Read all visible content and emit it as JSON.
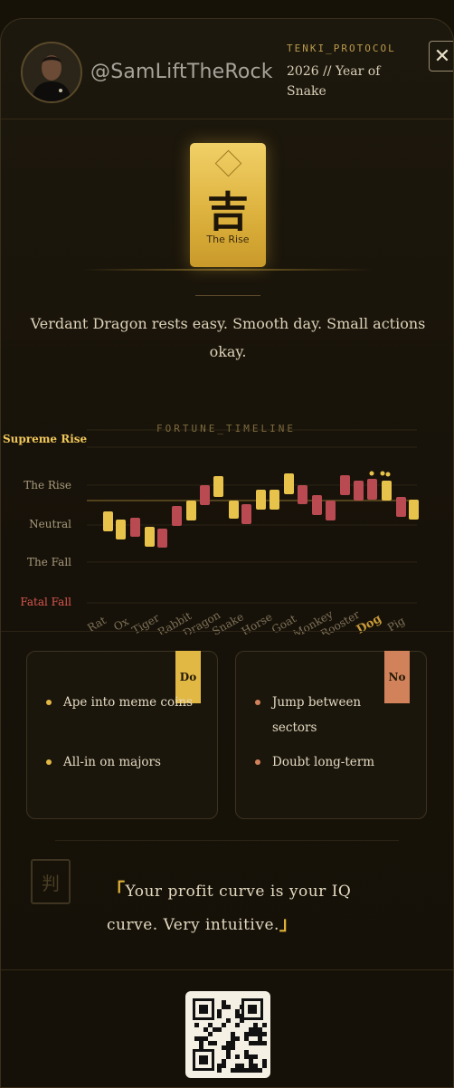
{
  "header": {
    "handle": "@SamLiftTheRock",
    "protocol": "TENKI_PROTOCOL",
    "year": "2026 // Year of Snake",
    "close_icon": "close-icon"
  },
  "fortune_card": {
    "kanji": "吉",
    "label": "The Rise",
    "color": "#e2b845"
  },
  "verdict": "Verdant Dragon rests easy. Smooth day. Small actions okay.",
  "timeline": {
    "title": "FORTUNE_TIMELINE",
    "levels": [
      "Supreme Rise",
      "The Rise",
      "Neutral",
      "The Fall",
      "Fatal Fall"
    ],
    "level_colors": {
      "Supreme Rise": "#f0c75a",
      "Fatal Fall": "#d9574f"
    },
    "highlighted_sign": "Dog",
    "signs": [
      "Rat",
      "Ox",
      "Tiger",
      "Rabbit",
      "Dragon",
      "Snake",
      "Horse",
      "Goat",
      "Monkey",
      "Rooster",
      "Dog",
      "Pig"
    ]
  },
  "do_panel": {
    "tag": "Do",
    "items": [
      "Ape into meme coins",
      "All-in on majors"
    ],
    "color": "#e2b845"
  },
  "no_panel": {
    "tag": "No",
    "items": [
      "Jump between sectors",
      "Doubt long-term"
    ],
    "color": "#d2825a"
  },
  "seal": {
    "char": "判"
  },
  "quote": {
    "open": "「",
    "text": "Your profit curve is your IQ curve. Very intuitive.",
    "close": "」"
  },
  "qr_icon": "qr-code-icon"
}
